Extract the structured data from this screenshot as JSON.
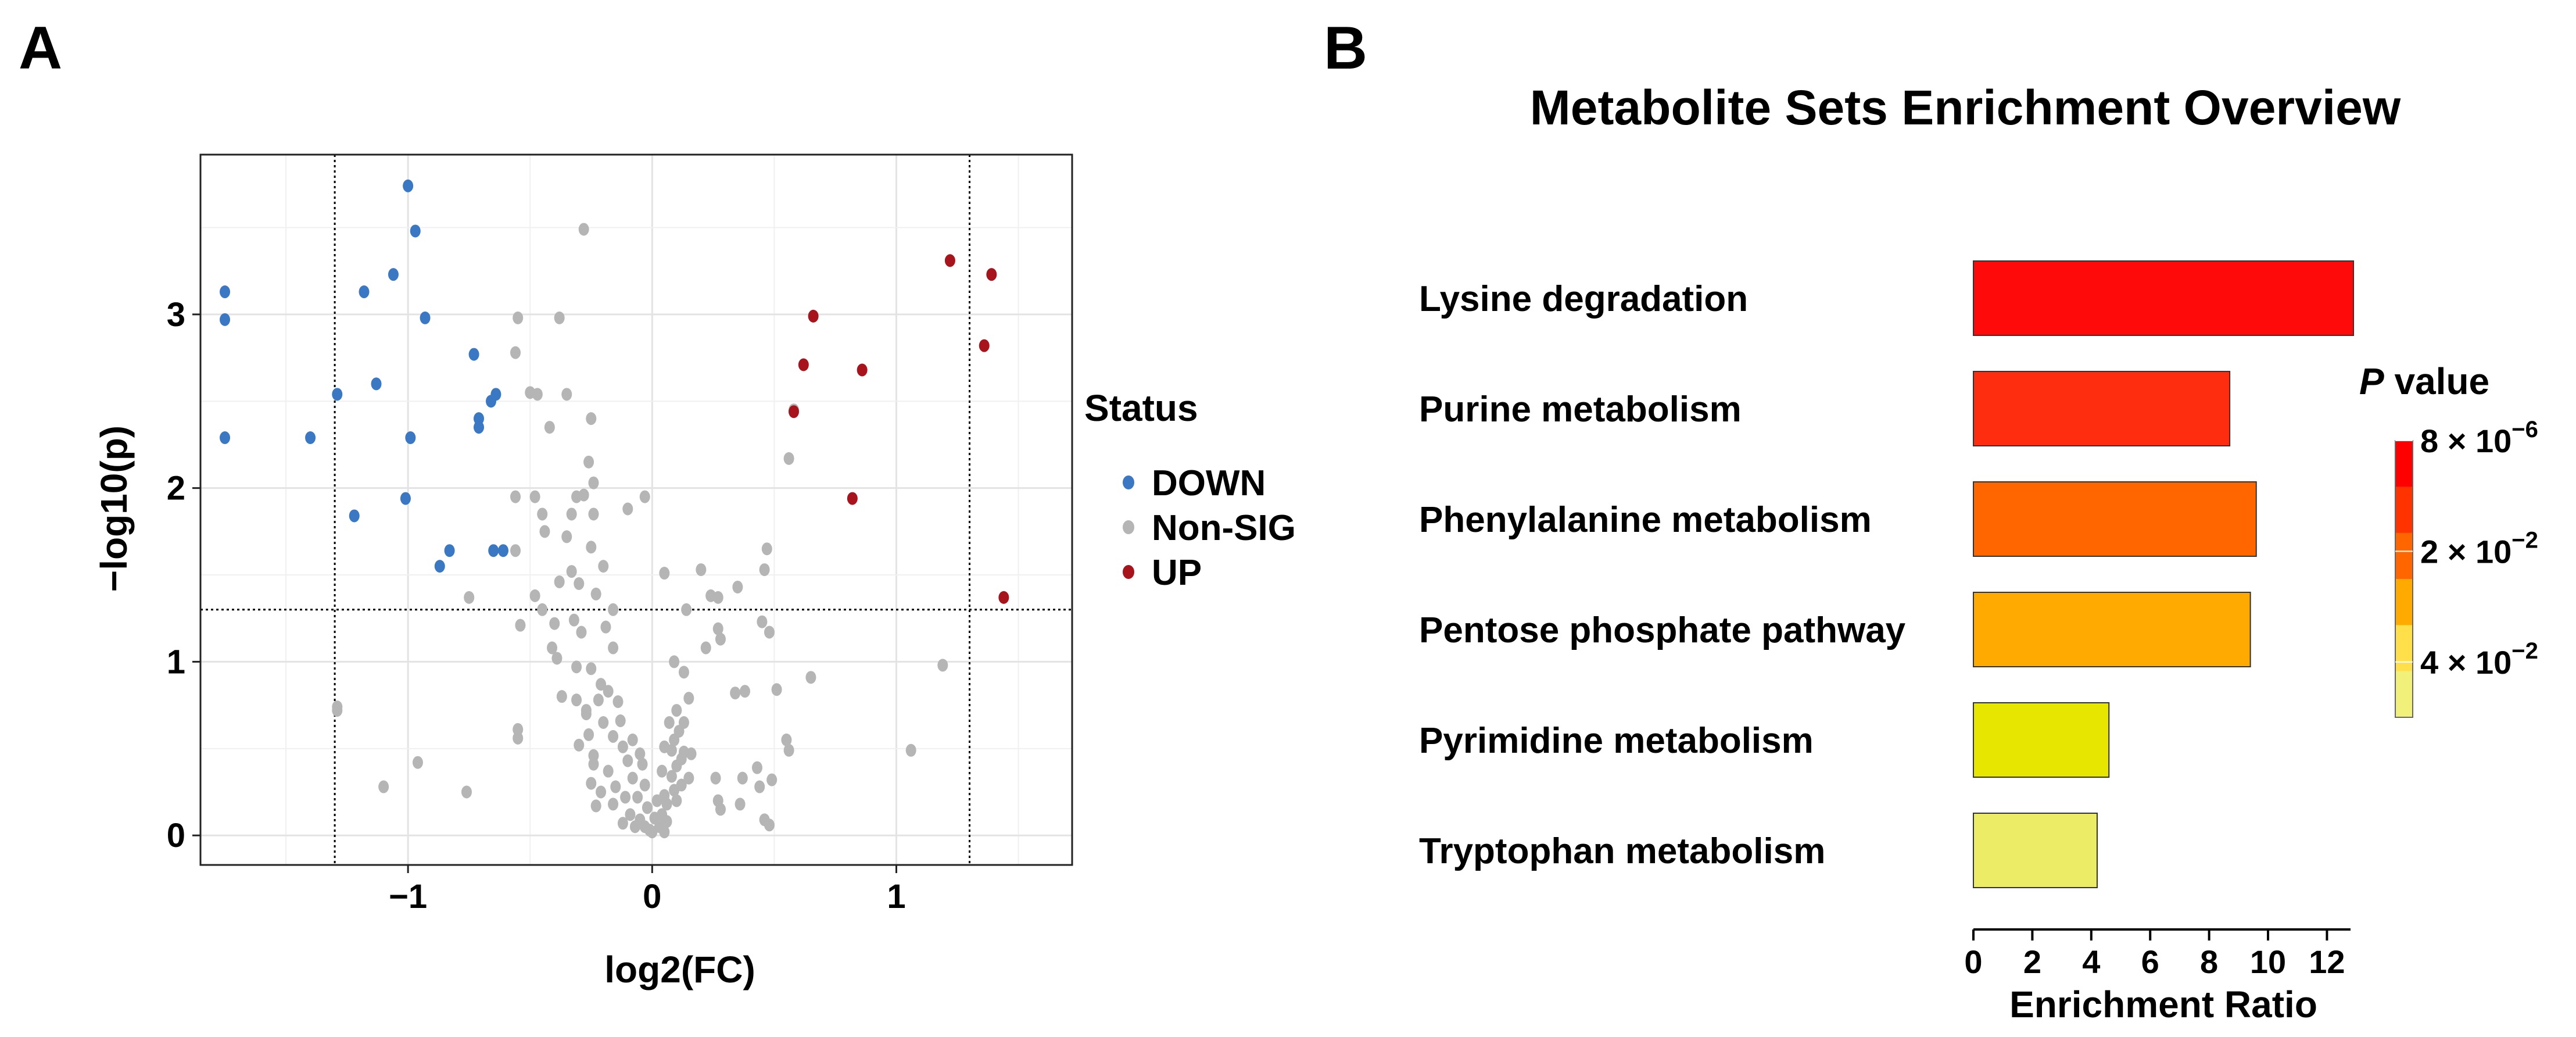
{
  "panels": {
    "a_label": "A",
    "b_label": "B"
  },
  "chart_data": [
    {
      "type": "scatter",
      "title": "",
      "xlabel": "log2(FC)",
      "ylabel": "−log10(p)",
      "xlim": [
        -1.85,
        1.72
      ],
      "ylim": [
        -0.17,
        3.92
      ],
      "x_ticks": [
        -1,
        0,
        1
      ],
      "x_tick_labels": [
        "−1",
        "0",
        "1"
      ],
      "y_ticks": [
        0,
        1,
        2,
        3
      ],
      "y_tick_labels": [
        "0",
        "1",
        "2",
        "3"
      ],
      "grid": true,
      "threshold_lines": {
        "x": [
          -1.3,
          1.3
        ],
        "y": [
          1.3
        ]
      },
      "legend": {
        "title": "Status",
        "position": "right",
        "entries": [
          {
            "label": "DOWN",
            "color": "#3a78c3"
          },
          {
            "label": "Non-SIG",
            "color": "#b5b5b5"
          },
          {
            "label": "UP",
            "color": "#a8141c"
          }
        ]
      },
      "series": [
        {
          "name": "DOWN",
          "color": "#3a78c3",
          "points": [
            [
              -1.0,
              3.74
            ],
            [
              -0.97,
              3.48
            ],
            [
              -1.75,
              3.13
            ],
            [
              -1.75,
              2.97
            ],
            [
              -1.18,
              3.13
            ],
            [
              -1.06,
              3.23
            ],
            [
              -0.93,
              2.98
            ],
            [
              -0.73,
              2.77
            ],
            [
              -1.13,
              2.6
            ],
            [
              -1.29,
              2.54
            ],
            [
              -0.64,
              2.54
            ],
            [
              -0.66,
              2.5
            ],
            [
              -0.71,
              2.4
            ],
            [
              -0.71,
              2.35
            ],
            [
              -1.75,
              2.29
            ],
            [
              -1.4,
              2.29
            ],
            [
              -0.99,
              2.29
            ],
            [
              -1.01,
              1.94
            ],
            [
              -1.22,
              1.84
            ],
            [
              -0.83,
              1.64
            ],
            [
              -0.65,
              1.64
            ],
            [
              -0.61,
              1.64
            ],
            [
              -0.87,
              1.55
            ]
          ]
        },
        {
          "name": "Non-SIG",
          "color": "#b5b5b5",
          "points": [
            [
              -0.28,
              3.49
            ],
            [
              -0.55,
              2.98
            ],
            [
              -0.38,
              2.98
            ],
            [
              -0.56,
              2.78
            ],
            [
              -0.5,
              2.55
            ],
            [
              -0.47,
              2.54
            ],
            [
              -0.35,
              2.54
            ],
            [
              -0.25,
              2.4
            ],
            [
              -0.42,
              2.35
            ],
            [
              -0.26,
              2.15
            ],
            [
              -0.24,
              2.03
            ],
            [
              -0.56,
              1.95
            ],
            [
              -0.48,
              1.95
            ],
            [
              -0.31,
              1.95
            ],
            [
              -0.28,
              1.96
            ],
            [
              -0.03,
              1.95
            ],
            [
              -0.45,
              1.85
            ],
            [
              -0.33,
              1.85
            ],
            [
              -0.24,
              1.85
            ],
            [
              -0.1,
              1.88
            ],
            [
              -0.44,
              1.75
            ],
            [
              -0.35,
              1.72
            ],
            [
              -0.56,
              1.64
            ],
            [
              -0.25,
              1.66
            ],
            [
              -0.33,
              1.52
            ],
            [
              -0.2,
              1.55
            ],
            [
              -0.75,
              1.37
            ],
            [
              -0.38,
              1.46
            ],
            [
              -0.3,
              1.45
            ],
            [
              -0.23,
              1.39
            ],
            [
              -0.16,
              1.3
            ],
            [
              -0.54,
              1.21
            ],
            [
              -0.4,
              1.22
            ],
            [
              -0.32,
              1.24
            ],
            [
              -0.29,
              1.17
            ],
            [
              -0.19,
              1.2
            ],
            [
              -0.16,
              1.08
            ],
            [
              -0.41,
              1.08
            ],
            [
              -0.39,
              1.02
            ],
            [
              -0.31,
              0.97
            ],
            [
              -0.25,
              0.96
            ],
            [
              -0.21,
              0.87
            ],
            [
              -0.37,
              0.8
            ],
            [
              -0.31,
              0.78
            ],
            [
              -0.22,
              0.78
            ],
            [
              -0.18,
              0.83
            ],
            [
              -0.14,
              0.77
            ],
            [
              -0.27,
              0.7
            ],
            [
              -0.2,
              0.65
            ],
            [
              -0.13,
              0.66
            ],
            [
              -0.55,
              0.61
            ],
            [
              -0.55,
              0.56
            ],
            [
              -0.26,
              0.58
            ],
            [
              -0.16,
              0.57
            ],
            [
              -0.3,
              0.52
            ],
            [
              -0.24,
              0.46
            ],
            [
              -0.12,
              0.51
            ],
            [
              -0.08,
              0.55
            ],
            [
              -0.05,
              0.47
            ],
            [
              -0.24,
              0.41
            ],
            [
              -0.18,
              0.37
            ],
            [
              -0.1,
              0.43
            ],
            [
              -0.04,
              0.41
            ],
            [
              -0.25,
              0.3
            ],
            [
              -0.21,
              0.25
            ],
            [
              -0.15,
              0.28
            ],
            [
              -0.08,
              0.33
            ],
            [
              -0.03,
              0.29
            ],
            [
              -0.23,
              0.17
            ],
            [
              -0.16,
              0.18
            ],
            [
              -0.11,
              0.22
            ],
            [
              -0.06,
              0.22
            ],
            [
              -0.02,
              0.16
            ],
            [
              -0.09,
              0.12
            ],
            [
              -0.05,
              0.09
            ],
            [
              -0.03,
              0.05
            ],
            [
              -0.01,
              0.03
            ],
            [
              -0.07,
              0.05
            ],
            [
              -0.12,
              0.07
            ],
            [
              -0.27,
              0.72
            ],
            [
              -0.45,
              1.3
            ],
            [
              -0.48,
              1.38
            ],
            [
              -1.29,
              0.72
            ],
            [
              -1.29,
              0.74
            ],
            [
              -0.96,
              0.42
            ],
            [
              -1.1,
              0.28
            ],
            [
              -0.76,
              0.25
            ],
            [
              0.05,
              1.51
            ],
            [
              0.2,
              1.53
            ],
            [
              0.47,
              1.65
            ],
            [
              0.46,
              1.53
            ],
            [
              0.35,
              1.43
            ],
            [
              0.27,
              1.37
            ],
            [
              0.24,
              1.38
            ],
            [
              0.14,
              1.3
            ],
            [
              0.45,
              1.23
            ],
            [
              0.48,
              1.17
            ],
            [
              0.27,
              1.19
            ],
            [
              0.28,
              1.13
            ],
            [
              0.22,
              1.08
            ],
            [
              0.09,
              1.0
            ],
            [
              0.13,
              0.94
            ],
            [
              0.51,
              0.84
            ],
            [
              0.65,
              0.91
            ],
            [
              0.38,
              0.83
            ],
            [
              0.34,
              0.82
            ],
            [
              0.15,
              0.79
            ],
            [
              0.1,
              0.72
            ],
            [
              0.07,
              0.65
            ],
            [
              0.11,
              0.6
            ],
            [
              0.13,
              0.65
            ],
            [
              0.09,
              0.55
            ],
            [
              0.05,
              0.51
            ],
            [
              0.08,
              0.49
            ],
            [
              0.13,
              0.48
            ],
            [
              0.16,
              0.47
            ],
            [
              0.12,
              0.44
            ],
            [
              0.1,
              0.4
            ],
            [
              0.04,
              0.37
            ],
            [
              0.08,
              0.34
            ],
            [
              0.15,
              0.33
            ],
            [
              0.12,
              0.29
            ],
            [
              0.09,
              0.26
            ],
            [
              0.05,
              0.23
            ],
            [
              0.02,
              0.2
            ],
            [
              0.06,
              0.18
            ],
            [
              0.1,
              0.2
            ],
            [
              0.04,
              0.12
            ],
            [
              0.01,
              0.1
            ],
            [
              0.06,
              0.08
            ],
            [
              0.03,
              0.05
            ],
            [
              0.0,
              0.02
            ],
            [
              0.05,
              0.02
            ],
            [
              0.27,
              0.2
            ],
            [
              0.26,
              0.33
            ],
            [
              0.37,
              0.33
            ],
            [
              0.43,
              0.39
            ],
            [
              0.49,
              0.32
            ],
            [
              0.44,
              0.28
            ],
            [
              0.36,
              0.18
            ],
            [
              0.28,
              0.15
            ],
            [
              0.46,
              0.09
            ],
            [
              0.48,
              0.06
            ],
            [
              0.55,
              0.55
            ],
            [
              0.56,
              0.49
            ],
            [
              0.56,
              2.17
            ],
            [
              0.58,
              2.45
            ],
            [
              1.06,
              0.49
            ],
            [
              1.19,
              0.98
            ]
          ]
        },
        {
          "name": "UP",
          "color": "#a8141c",
          "points": [
            [
              1.22,
              3.31
            ],
            [
              1.39,
              3.23
            ],
            [
              0.66,
              2.99
            ],
            [
              1.36,
              2.82
            ],
            [
              0.62,
              2.71
            ],
            [
              0.86,
              2.68
            ],
            [
              0.58,
              2.44
            ],
            [
              0.82,
              1.94
            ],
            [
              1.44,
              1.37
            ]
          ]
        }
      ]
    },
    {
      "type": "bar",
      "orientation": "horizontal",
      "title": "Metabolite Sets Enrichment Overview",
      "xlabel": "Enrichment Ratio",
      "ylabel": "",
      "xlim": [
        0,
        12.8
      ],
      "x_ticks": [
        0,
        2,
        4,
        6,
        8,
        10,
        12
      ],
      "x_tick_labels": [
        "0",
        "2",
        "4",
        "6",
        "8",
        "10",
        "12"
      ],
      "categories": [
        "Lysine degradation",
        "Purine metabolism",
        "Phenylalanine metabolism",
        "Pentose phosphate pathway",
        "Pyrimidine metabolism",
        "Tryptophan metabolism"
      ],
      "values": [
        12.9,
        8.7,
        9.6,
        9.4,
        4.6,
        4.2
      ],
      "bar_colors": [
        "#ff0a0a",
        "#ff2d0f",
        "#ff6600",
        "#ffaa00",
        "#e6e600",
        "#ecec66"
      ],
      "colorbar": {
        "title_italic": "P",
        "title_rest": " value",
        "position": "right",
        "tick_labels": [
          {
            "base": "8 × 10",
            "exp": "−6"
          },
          {
            "base": "2 × 10",
            "exp": "−2"
          },
          {
            "base": "4 × 10",
            "exp": "−2"
          }
        ],
        "colors": [
          "#ff0000",
          "#ff3300",
          "#ff6600",
          "#ffaa00",
          "#ffe04a",
          "#f0f07a"
        ]
      }
    }
  ]
}
